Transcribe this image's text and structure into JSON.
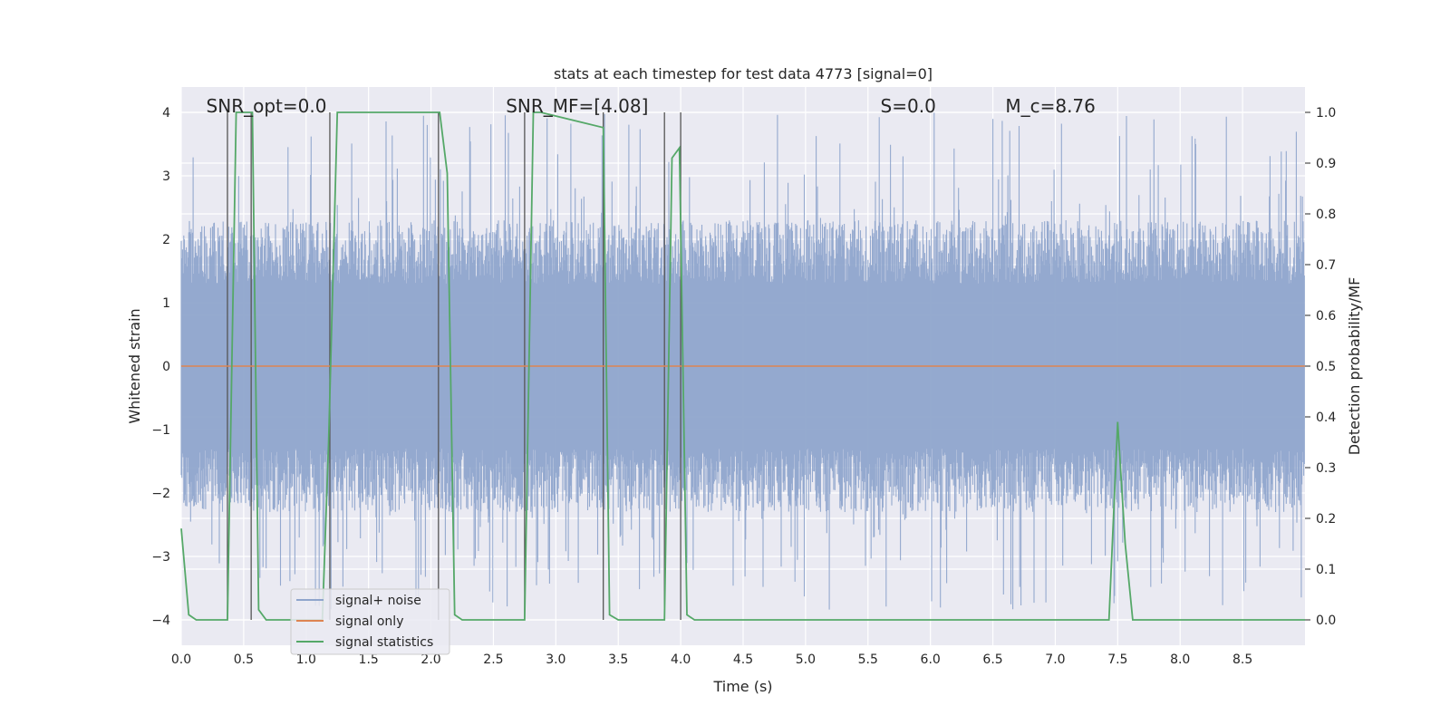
{
  "chart_data": {
    "type": "line",
    "title": "stats at each timestep for test data 4773 [signal=0]",
    "xlabel": "Time (s)",
    "ylabel": "Whitened strain",
    "y2label": "Detection probability/MF",
    "xlim": [
      0,
      9.0
    ],
    "ylim": [
      -4.4,
      4.4
    ],
    "y2lim": [
      -0.05,
      1.05
    ],
    "xticks": [
      0.0,
      0.5,
      1.0,
      1.5,
      2.0,
      2.5,
      3.0,
      3.5,
      4.0,
      4.5,
      5.0,
      5.5,
      6.0,
      6.5,
      7.0,
      7.5,
      8.0,
      8.5
    ],
    "xtick_labels": [
      "0.0",
      "0.5",
      "1.0",
      "1.5",
      "2.0",
      "2.5",
      "3.0",
      "3.5",
      "4.0",
      "4.5",
      "5.0",
      "5.5",
      "6.0",
      "6.5",
      "7.0",
      "7.5",
      "8.0",
      "8.5"
    ],
    "yticks": [
      -4,
      -3,
      -2,
      -1,
      0,
      1,
      2,
      3,
      4
    ],
    "ytick_labels": [
      "−4",
      "−3",
      "−2",
      "−1",
      "0",
      "1",
      "2",
      "3",
      "4"
    ],
    "y2ticks": [
      0.0,
      0.1,
      0.2,
      0.3,
      0.4,
      0.5,
      0.6,
      0.7,
      0.8,
      0.9,
      1.0
    ],
    "y2tick_labels": [
      "0.0",
      "0.1",
      "0.2",
      "0.3",
      "0.4",
      "0.5",
      "0.6",
      "0.7",
      "0.8",
      "0.9",
      "1.0"
    ],
    "grid": true,
    "legend_position": "lower-left",
    "annotations": [
      {
        "text": "SNR_opt=0.0",
        "x": 0.2
      },
      {
        "text": "SNR_MF=[4.08]",
        "x": 2.6
      },
      {
        "text": "S=0.0",
        "x": 5.6
      },
      {
        "text": "M_c=8.76",
        "x": 6.6
      }
    ],
    "series": [
      {
        "name": "signal+ noise",
        "color": "#8fa5cc",
        "kind": "noise",
        "envelope": {
          "typical_max": 2.3,
          "typical_min": -2.3,
          "peak_max": 4.0,
          "peak_min": -3.9
        }
      },
      {
        "name": "signal only",
        "color": "#dd8452",
        "kind": "line",
        "x": [
          0.0,
          9.0
        ],
        "y": [
          0.0,
          0.0
        ]
      },
      {
        "name": "signal statistics",
        "color": "#55a868",
        "kind": "line",
        "axis": "right",
        "x": [
          0.0,
          0.06,
          0.12,
          0.37,
          0.44,
          0.5,
          0.57,
          0.62,
          0.68,
          0.75,
          1.13,
          1.18,
          1.25,
          1.32,
          1.38,
          2.07,
          2.13,
          2.19,
          2.25,
          2.3,
          2.75,
          2.82,
          2.88,
          3.38,
          3.43,
          3.5,
          3.56,
          3.87,
          3.93,
          3.99,
          4.05,
          4.11,
          4.3,
          7.43,
          7.5,
          7.56,
          7.62,
          9.0
        ],
        "y": [
          0.18,
          0.01,
          0.0,
          0.0,
          1.0,
          1.0,
          1.0,
          0.02,
          0.0,
          0.0,
          0.0,
          0.35,
          1.0,
          1.0,
          1.0,
          1.0,
          0.88,
          0.01,
          0.0,
          0.0,
          0.0,
          1.0,
          1.0,
          0.97,
          0.01,
          0.0,
          0.0,
          0.0,
          0.91,
          0.93,
          0.01,
          0.0,
          0.0,
          0.0,
          0.39,
          0.15,
          0.0,
          0.0
        ]
      }
    ],
    "vlines": [
      0.37,
      0.56,
      1.19,
      2.06,
      2.75,
      3.38,
      3.87,
      4.0
    ]
  }
}
